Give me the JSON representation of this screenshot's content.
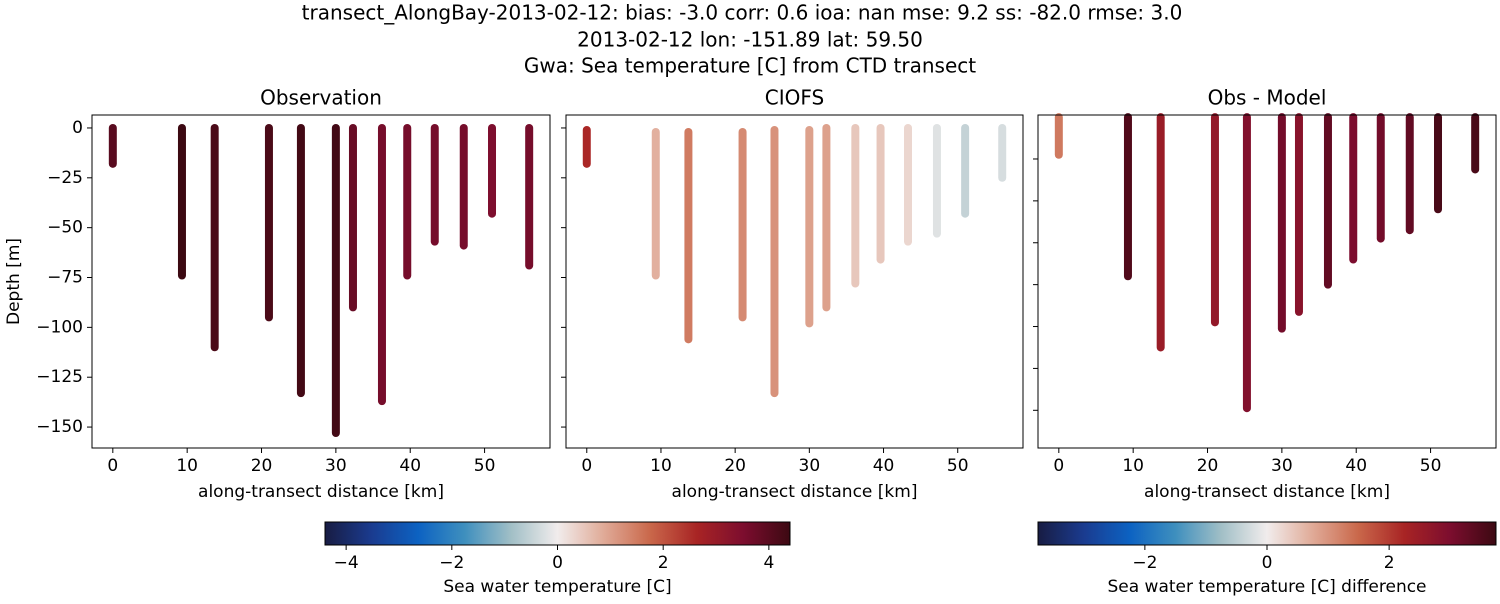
{
  "suptitle": [
    "transect_AlongBay-2013-02-12: bias: -3.0  corr: 0.6  ioa: nan  mse: 9.2  ss: -82.0  rmse: 3.0",
    "2013-02-12 lon: -151.89 lat: 59.50",
    "Gwa: Sea temperature [C] from CTD transect"
  ],
  "chart_data": [
    {
      "type": "strip",
      "title": "Observation",
      "xlabel": "along-transect distance [km]",
      "ylabel": "Depth [m]",
      "x": [
        0,
        9.3,
        13.7,
        21,
        25.3,
        30,
        32.3,
        36.2,
        39.6,
        43.3,
        47.2,
        51,
        56
      ],
      "top": [
        0,
        0,
        0,
        0,
        0,
        0,
        0,
        0,
        0,
        0,
        0,
        0,
        0
      ],
      "bottom": [
        -18,
        -74,
        -110,
        -95,
        -133,
        -153,
        -90,
        -137,
        -74,
        -57,
        -59,
        -43,
        -69
      ],
      "values": [
        4.0,
        4.5,
        4.2,
        4.2,
        4.3,
        4.3,
        3.8,
        3.6,
        3.6,
        3.6,
        3.6,
        3.5,
        3.6
      ],
      "xlim": [
        -2.8,
        58.8
      ],
      "ylim": [
        -160.5,
        6.5
      ],
      "xticks": [
        0,
        10,
        20,
        30,
        40,
        50
      ],
      "yticks": [
        0,
        {
          "value": -25,
          "label": "−25"
        },
        {
          "value": -50,
          "label": "−50"
        },
        {
          "value": -75,
          "label": "−75"
        },
        {
          "value": -100,
          "label": "−100"
        },
        {
          "value": -125,
          "label": "−125"
        },
        {
          "value": -150,
          "label": "−150"
        }
      ],
      "show_yticklabels": true
    },
    {
      "type": "strip",
      "title": "CIOFS",
      "xlabel": "along-transect distance [km]",
      "x": [
        0,
        9.3,
        13.7,
        21,
        25.3,
        30,
        32.3,
        36.2,
        39.6,
        43.3,
        47.2,
        51,
        56
      ],
      "top": [
        -1,
        -2,
        -2,
        -2,
        -1,
        -1,
        0,
        0,
        0,
        0,
        0,
        0,
        0
      ],
      "bottom": [
        -18,
        -74,
        -106,
        -95,
        -133,
        -98,
        -90,
        -78,
        -66,
        -57,
        -53,
        -43,
        -25
      ],
      "values": [
        2.6,
        0.8,
        1.5,
        1.3,
        1.2,
        1.0,
        1.0,
        0.5,
        0.5,
        0.3,
        -0.2,
        -0.5,
        -0.3
      ],
      "xlim": [
        -2.8,
        58.8
      ],
      "ylim": [
        -160.5,
        6.5
      ],
      "xticks": [
        0,
        10,
        20,
        30,
        40,
        50
      ],
      "yticks": [
        0,
        -25,
        -50,
        -75,
        -100,
        -125,
        -150
      ],
      "show_yticklabels": false
    },
    {
      "type": "strip",
      "title": "Obs - Model",
      "xlabel": "along-transect distance [km]",
      "x": [
        0,
        9.3,
        13.7,
        21,
        25.3,
        30,
        32.3,
        36.2,
        39.6,
        43.3,
        47.2,
        51,
        56
      ],
      "top": [
        0,
        0,
        0,
        0,
        0,
        0,
        0,
        0,
        0,
        0,
        0,
        0,
        0
      ],
      "bottom": [
        -18,
        -76,
        -110,
        -98,
        -139,
        -101,
        -93,
        -80,
        -68,
        -58,
        -54,
        -44,
        -25
      ],
      "values": [
        1.3,
        3.5,
        2.5,
        2.6,
        2.9,
        3.1,
        2.8,
        3.3,
        3.0,
        3.1,
        3.3,
        3.6,
        3.6
      ],
      "xlim": [
        -2.8,
        58.8
      ],
      "ylim": [
        -158,
        1
      ],
      "xticks": [
        0,
        10,
        20,
        30,
        40,
        50
      ],
      "yticks": [
        -20,
        -40,
        -60,
        -80,
        -100,
        -120,
        -140
      ],
      "show_yticklabels": false
    }
  ],
  "colorbars": [
    {
      "label": "Sea water temperature [C]",
      "lim": [
        -4.4,
        4.4
      ],
      "ticks": [
        {
          "value": -4,
          "label": "−4"
        },
        {
          "value": -2,
          "label": "−2"
        },
        0,
        2,
        4
      ]
    },
    {
      "label": "Sea water temperature [C] difference",
      "lim": [
        -3.75,
        3.75
      ],
      "ticks": [
        {
          "value": -2,
          "label": "−2"
        },
        0,
        2
      ]
    }
  ],
  "colormap": [
    "#181c43",
    "#1a3b8f",
    "#0c62c2",
    "#3e8fbe",
    "#a1bfc6",
    "#f1ecec",
    "#e0aa97",
    "#c9674a",
    "#a82424",
    "#7c0d2e",
    "#3c0912"
  ]
}
